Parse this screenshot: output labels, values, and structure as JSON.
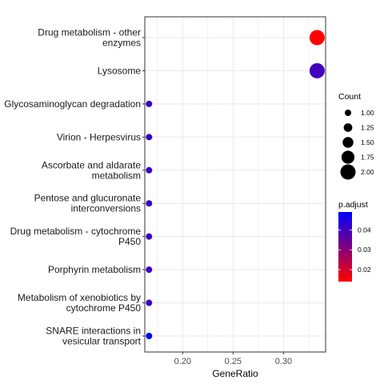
{
  "chart_data": {
    "type": "scatter",
    "title": "",
    "xlabel": "GeneRatio",
    "ylabel": "",
    "xlim": [
      0.1625,
      0.3417
    ],
    "x_ticks": [
      0.2,
      0.25,
      0.3
    ],
    "x_tick_labels": [
      "0.20",
      "0.25",
      "0.30"
    ],
    "grid": true,
    "legend_position": "right",
    "points": [
      {
        "term": "Drug metabolism - other enzymes",
        "label_lines": [
          "Drug metabolism - other",
          "enzymes"
        ],
        "gene_ratio": 0.3333,
        "count": 2,
        "p_adjust": 0.014
      },
      {
        "term": "Lysosome",
        "label_lines": [
          "Lysosome"
        ],
        "gene_ratio": 0.3333,
        "count": 2,
        "p_adjust": 0.04
      },
      {
        "term": "Glycosaminoglycan degradation",
        "label_lines": [
          "Glycosaminoglycan degradation"
        ],
        "gene_ratio": 0.1667,
        "count": 1,
        "p_adjust": 0.041
      },
      {
        "term": "Virion - Herpesvirus",
        "label_lines": [
          "Virion - Herpesvirus"
        ],
        "gene_ratio": 0.1667,
        "count": 1,
        "p_adjust": 0.041
      },
      {
        "term": "Ascorbate and aldarate metabolism",
        "label_lines": [
          "Ascorbate and aldarate",
          "metabolism"
        ],
        "gene_ratio": 0.1667,
        "count": 1,
        "p_adjust": 0.041
      },
      {
        "term": "Pentose and glucuronate interconversions",
        "label_lines": [
          "Pentose and glucuronate",
          "interconversions"
        ],
        "gene_ratio": 0.1667,
        "count": 1,
        "p_adjust": 0.041
      },
      {
        "term": "Drug metabolism - cytochrome P450",
        "label_lines": [
          "Drug metabolism - cytochrome",
          "P450"
        ],
        "gene_ratio": 0.1667,
        "count": 1,
        "p_adjust": 0.041
      },
      {
        "term": "Porphyrin metabolism",
        "label_lines": [
          "Porphyrin metabolism"
        ],
        "gene_ratio": 0.1667,
        "count": 1,
        "p_adjust": 0.041
      },
      {
        "term": "Metabolism of xenobiotics by cytochrome P450",
        "label_lines": [
          "Metabolism of xenobiotics by",
          "cytochrome P450"
        ],
        "gene_ratio": 0.1667,
        "count": 1,
        "p_adjust": 0.041
      },
      {
        "term": "SNARE interactions in vesicular transport",
        "label_lines": [
          "SNARE interactions in",
          "vesicular transport"
        ],
        "gene_ratio": 0.1667,
        "count": 1,
        "p_adjust": 0.049
      }
    ],
    "legend_count": {
      "title": "Count",
      "values": [
        1.0,
        1.25,
        1.5,
        1.75,
        2.0
      ],
      "labels": [
        "1.00",
        "1.25",
        "1.50",
        "1.75",
        "2.00"
      ]
    },
    "legend_color": {
      "title": "p.adjust",
      "range": [
        0.014,
        0.049
      ],
      "low_color": "#FF0000",
      "high_color": "#0000FF",
      "ticks": [
        0.02,
        0.03,
        0.04
      ],
      "tick_labels": [
        "0.02",
        "0.03",
        "0.04"
      ]
    },
    "colors": {
      "panel_border": "#333333",
      "grid": "#EBEBEB",
      "background": "#FFFFFF"
    }
  }
}
